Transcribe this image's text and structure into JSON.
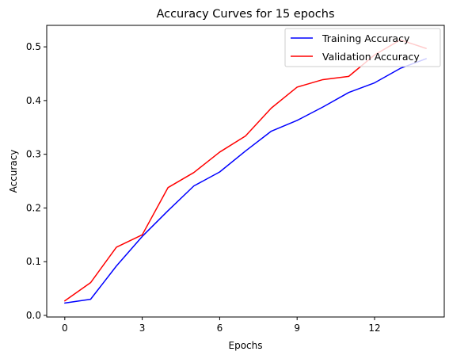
{
  "chart_data": {
    "type": "line",
    "title": "Accuracy Curves for 15 epochs",
    "xlabel": "Epochs",
    "ylabel": "Accuracy",
    "xlim": [
      -0.7,
      14.7
    ],
    "ylim": [
      -0.003,
      0.54
    ],
    "xticks": [
      0,
      3,
      6,
      9,
      12
    ],
    "yticks": [
      0.0,
      0.1,
      0.2,
      0.3,
      0.4,
      0.5
    ],
    "ytick_labels": [
      "0.0",
      "0.1",
      "0.2",
      "0.3",
      "0.4",
      "0.5"
    ],
    "grid": false,
    "legend_position": "top-right",
    "x": [
      0,
      1,
      2,
      3,
      4,
      5,
      6,
      7,
      8,
      9,
      10,
      11,
      12,
      13,
      14
    ],
    "series": [
      {
        "name": "Training Accuracy",
        "color": "#0000ff",
        "values": [
          0.023,
          0.03,
          0.092,
          0.147,
          0.195,
          0.241,
          0.267,
          0.306,
          0.343,
          0.363,
          0.388,
          0.415,
          0.433,
          0.46,
          0.478
        ]
      },
      {
        "name": "Validation Accuracy",
        "color": "#ff0000",
        "values": [
          0.027,
          0.061,
          0.127,
          0.15,
          0.238,
          0.266,
          0.304,
          0.334,
          0.386,
          0.425,
          0.439,
          0.445,
          0.485,
          0.513,
          0.497
        ]
      }
    ]
  }
}
